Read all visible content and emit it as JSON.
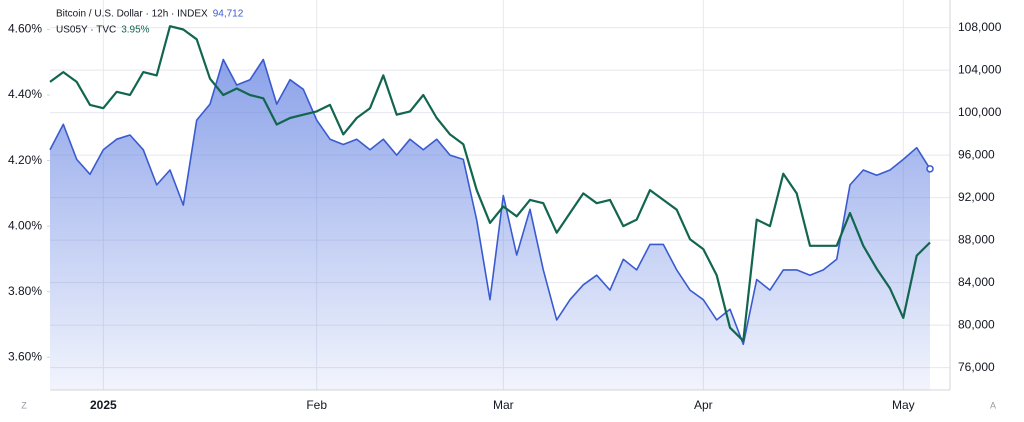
{
  "chart_data": {
    "type": "line",
    "categories": [
      null,
      null,
      null,
      null,
      "2025",
      null,
      null,
      null,
      null,
      null,
      null,
      null,
      null,
      null,
      null,
      null,
      null,
      null,
      null,
      null,
      "Feb",
      null,
      null,
      null,
      null,
      null,
      null,
      null,
      null,
      null,
      null,
      null,
      null,
      null,
      "Mar",
      null,
      null,
      null,
      null,
      null,
      null,
      null,
      null,
      null,
      null,
      null,
      null,
      null,
      null,
      "Apr",
      null,
      null,
      null,
      null,
      null,
      null,
      null,
      null,
      null,
      null,
      null,
      null,
      null,
      null,
      "May",
      null,
      null
    ],
    "series": [
      {
        "name": "Bitcoin / U.S. Dollar · 12h · INDEX",
        "color": "#3a5bd0",
        "axis": "y2",
        "fill": true,
        "last_value": 94712,
        "last_value_label": "94,712",
        "values": [
          96500,
          98900,
          95600,
          94200,
          96500,
          97500,
          97900,
          96500,
          93200,
          94600,
          91300,
          99300,
          100800,
          105000,
          102600,
          103100,
          105000,
          100800,
          103100,
          102200,
          99300,
          97500,
          97000,
          97500,
          96500,
          97500,
          96000,
          97500,
          96500,
          97500,
          96000,
          95600,
          89900,
          82400,
          92200,
          86600,
          90900,
          85200,
          80500,
          82400,
          83800,
          84700,
          83300,
          86200,
          85200,
          87600,
          87600,
          85200,
          83300,
          82400,
          80500,
          81500,
          78200,
          84300,
          83300,
          85200,
          85200,
          84700,
          85200,
          86200,
          93200,
          94600,
          94100,
          94600,
          95600,
          96700,
          94712
        ]
      },
      {
        "name": "US05Y · TVC",
        "color": "#12664f",
        "axis": "y",
        "fill": false,
        "last_value": 3.95,
        "last_value_label": "3.95%",
        "values": [
          4.44,
          4.47,
          4.44,
          4.37,
          4.36,
          4.41,
          4.4,
          4.47,
          4.46,
          4.61,
          4.6,
          4.57,
          4.45,
          4.4,
          4.42,
          4.4,
          4.39,
          4.31,
          4.33,
          4.34,
          4.35,
          4.37,
          4.28,
          4.33,
          4.36,
          4.46,
          4.34,
          4.35,
          4.4,
          4.33,
          4.28,
          4.25,
          4.11,
          4.01,
          4.06,
          4.03,
          4.08,
          4.07,
          3.98,
          4.04,
          4.1,
          4.07,
          4.08,
          4.0,
          4.02,
          4.11,
          4.08,
          4.05,
          3.96,
          3.93,
          3.85,
          3.69,
          3.65,
          4.02,
          4.0,
          4.16,
          4.1,
          3.94,
          3.94,
          3.94,
          4.04,
          3.94,
          3.87,
          3.81,
          3.72,
          3.91,
          3.95
        ]
      }
    ],
    "ylim": [
      3.5,
      4.69
    ],
    "yticks": [
      {
        "value": 3.6,
        "label": "3.60%"
      },
      {
        "value": 3.8,
        "label": "3.80%"
      },
      {
        "value": 4.0,
        "label": "4.00%"
      },
      {
        "value": 4.2,
        "label": "4.20%"
      },
      {
        "value": 4.4,
        "label": "4.40%"
      },
      {
        "value": 4.6,
        "label": "4.60%"
      }
    ],
    "y2lim": [
      73900,
      110600
    ],
    "y2ticks": [
      {
        "value": 76000,
        "label": "76,000"
      },
      {
        "value": 80000,
        "label": "80,000"
      },
      {
        "value": 84000,
        "label": "84,000"
      },
      {
        "value": 88000,
        "label": "88,000"
      },
      {
        "value": 92000,
        "label": "92,000"
      },
      {
        "value": 96000,
        "label": "96,000"
      },
      {
        "value": 100000,
        "label": "100,000"
      },
      {
        "value": 104000,
        "label": "104,000"
      },
      {
        "value": 108000,
        "label": "108,000"
      }
    ],
    "grid": true,
    "zoom_button": "Z",
    "auto_button": "A"
  }
}
